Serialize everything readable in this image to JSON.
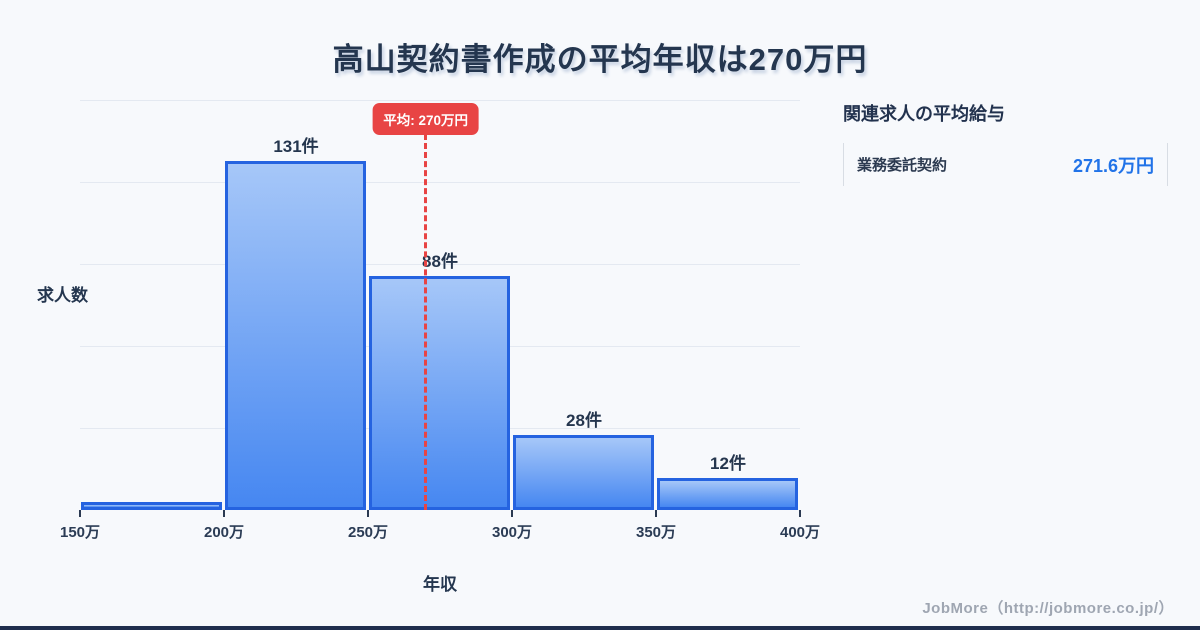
{
  "title": "高山契約書作成の平均年収は270万円",
  "chart_data": {
    "type": "bar",
    "title": "高山契約書作成の平均年収は270万円",
    "xlabel": "年収",
    "ylabel": "求人数",
    "x_ticks": [
      "150万",
      "200万",
      "250万",
      "300万",
      "350万",
      "400万"
    ],
    "x_range": [
      150,
      400
    ],
    "bin_width": 50,
    "values": [
      3,
      131,
      88,
      28,
      12
    ],
    "bar_labels": [
      "",
      "131件",
      "88件",
      "28件",
      "12件"
    ],
    "ylim": [
      0,
      154
    ],
    "grid": "horizontal",
    "legend": "none",
    "average": {
      "x_value": 270,
      "label": "平均: 270万円"
    }
  },
  "side_panel": {
    "heading": "関連求人の平均給与",
    "rows": [
      {
        "label": "業務委託契約",
        "value": "271.6万円"
      }
    ]
  },
  "footer": {
    "credit": "JobMore（http://jobmore.co.jp/）"
  },
  "colors": {
    "bar_fill_top": "#a6c7f8",
    "bar_fill_bottom": "#4687f1",
    "bar_border": "#2563e0",
    "average_red": "#e84444",
    "value_blue": "#2173e8",
    "title_navy": "#24364f",
    "grid_line": "#e4e9f1",
    "background": "#f7f9fc",
    "footer_gray": "#9fa6b2",
    "bottom_bar_navy": "#1f2e4d"
  }
}
